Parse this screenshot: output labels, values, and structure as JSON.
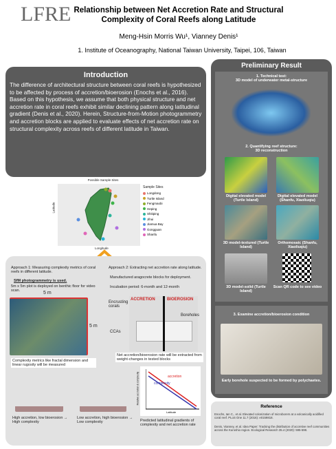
{
  "header": {
    "logo": "LFRE",
    "title": "Relationship between Net Accretion Rate and Structural Complexity of Coral Reefs along Latitude",
    "authors": "Meng-Hsin Morris Wu¹, Vianney Denis¹",
    "affiliation": "1. Institute of Oceanography, National Taiwan University, Taipei, 106, Taiwan"
  },
  "intro": {
    "heading": "Introduction",
    "body": "The difference of architectural structure between coral reefs is hypothesized to be affected by process of accretion/bioerosion (Enochs et al., 2016). Based on this hypothesis, we assume that both physical structure and net accretion rate in coral reefs exhibit similar declining pattern along latitudinal gradient (Denis et al., 2020). Herein, Structure-from-Motion photogrammetry and accretion blocks are applied to evaluate effects of net accretion rate on structural complexity across reefs of different latitude in Taiwan."
  },
  "map": {
    "title": "Possible Sample Sites",
    "legend_title": "Sample Sites",
    "y_label": "Latitude",
    "x_label": "Longitude",
    "sites": [
      {
        "name": "Longdong",
        "color": "#e8746a"
      },
      {
        "name": "Turtle Island",
        "color": "#c9a227"
      },
      {
        "name": "Fengmaobi",
        "color": "#8fae2a"
      },
      {
        "name": "Heping",
        "color": "#3fb44a"
      },
      {
        "name": "Shitiping",
        "color": "#2bb59a"
      },
      {
        "name": "Jihui",
        "color": "#27b3d6"
      },
      {
        "name": "Jiamua Bay",
        "color": "#5b8fe0"
      },
      {
        "name": "Gongguan",
        "color": "#b06fe0"
      },
      {
        "name": "Shanfu",
        "color": "#e066b8"
      }
    ]
  },
  "approach1": {
    "text": "Approach 1: Measuring complexity metrics of coral reefs in different latitude.",
    "bullet": "SfM photogrammetry is used.",
    "note": "5m x 5m plot is deployed on benthic floor for video scan.",
    "side_top": "5 m",
    "side_right": "5 m",
    "caption": "Complexity metrics like fractal dimension and linear rugosity will be measured"
  },
  "approach2": {
    "text": "Approach 2: Extracting net accretion rate along latitude.",
    "bullets": [
      "Manufactured aragocrete blocks for deployment.",
      "Incubation period: 6-month and 12-month"
    ],
    "accretion": "ACCRETION",
    "bioerosion": "BIOEROSION",
    "corals": "Encrusting corals",
    "boreholes": "Boreholes",
    "ccas": "CCAs",
    "caption": "Net accretion/bioerosion rate will be extracted from weight-changes in tested blocks"
  },
  "graph": {
    "accretion": "accretion",
    "complexity": "complexity",
    "y_label": "Relative accretion & complexity",
    "x_label": "Latitude"
  },
  "scenarios": [
    "High accretion, low bioerosion → High complexity",
    "Low accretion, high bioerosion → Low complexity",
    "Predicted latitudinal gradients of complexity and net accretion rate"
  ],
  "results": {
    "heading": "Preliminary Result",
    "s1": "1.    Technical test:\n3D model of underwater metal-structure",
    "s2": "2. Quantifying reef structure:\n3D reconstruction",
    "captions": [
      "Digital elevated model (Turtle Island)",
      "Digital elevated model (Shanfu, Xiaoliuqiu)",
      "3D model-textured (Turtle Island)",
      "Orthomosaic (Shanfu, Xiaoliuqiu)",
      "3D model-solid (Turtle Island)",
      "Scan QR code to see video"
    ],
    "s3": "3. Examine accretion/bioerosion condition",
    "s3_caption": "Early borehole suspected to be formed by polychaetes."
  },
  "reference": {
    "heading": "Reference",
    "items": [
      "Enochs, Ian C., et al. Elevated colonization of microborers at a volcanically acidified coral reef. PLoS One 11.7 (2016): e0159818.",
      "Denis, Vianney, et al. Idea Paper: Tracking the distribution of accretive reef communities across the Kuroshio region. Ecological Research 35.4 (2020): 595-598."
    ]
  }
}
